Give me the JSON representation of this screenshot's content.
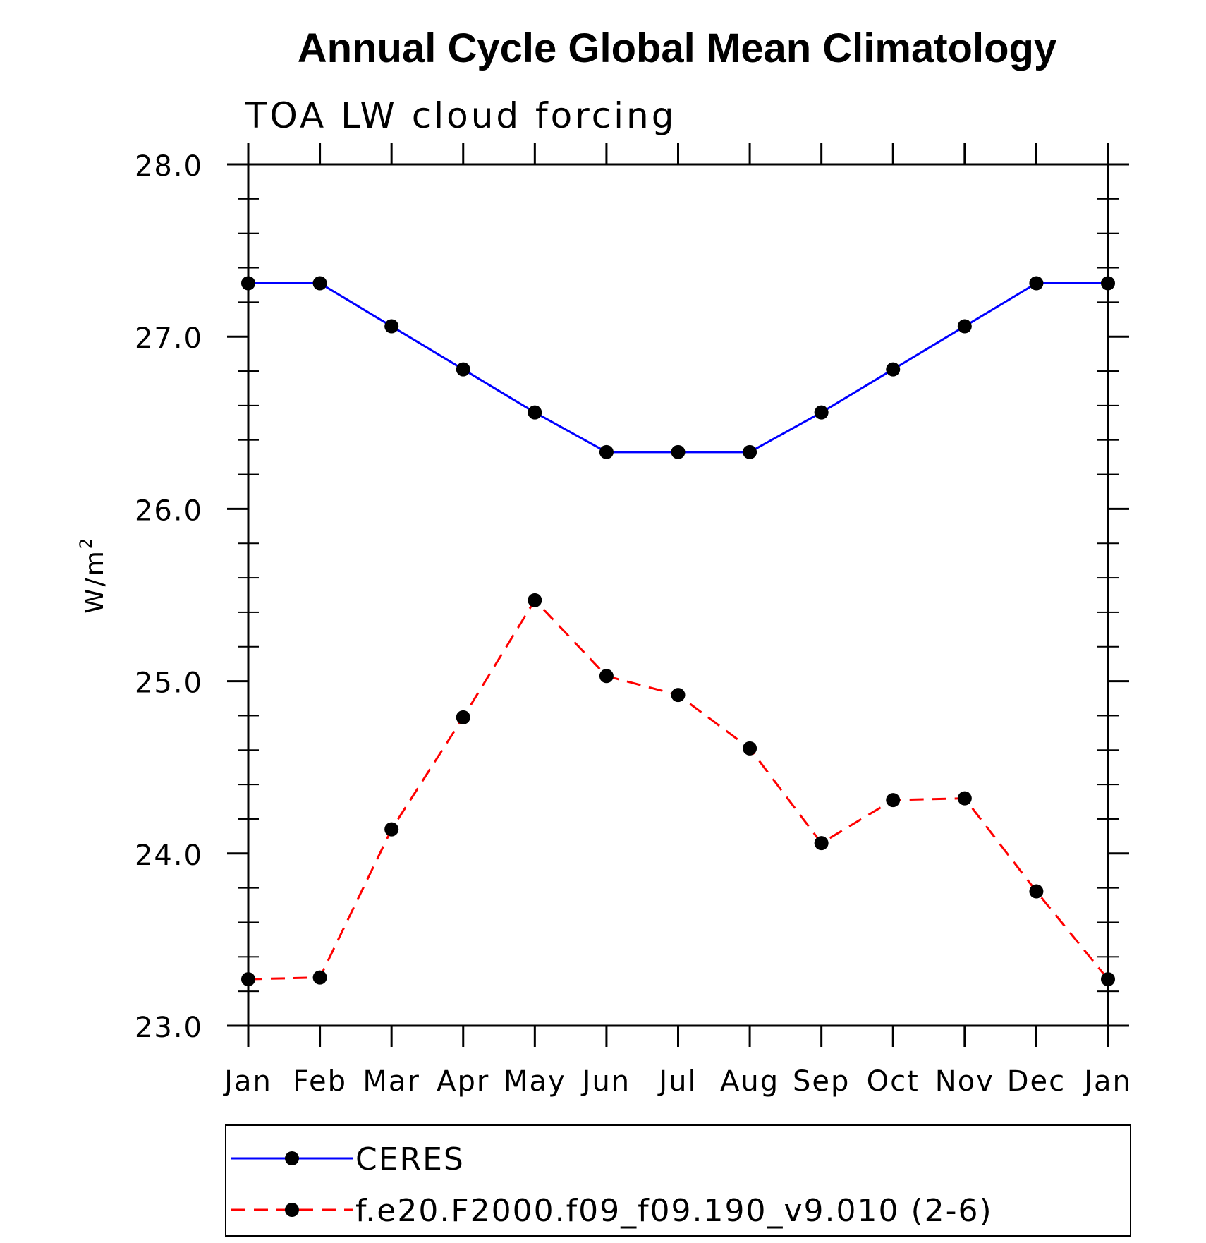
{
  "chart_data": {
    "type": "line",
    "title": "Annual Cycle Global Mean Climatology",
    "subtitle": "TOA LW cloud forcing",
    "xlabel": "",
    "ylabel": "W/m",
    "ylabel_superscript": "2",
    "categories": [
      "Jan",
      "Feb",
      "Mar",
      "Apr",
      "May",
      "Jun",
      "Jul",
      "Aug",
      "Sep",
      "Oct",
      "Nov",
      "Dec",
      "Jan"
    ],
    "ylim": [
      23.0,
      28.0
    ],
    "yticks": [
      "23.0",
      "24.0",
      "25.0",
      "26.0",
      "27.0",
      "28.0"
    ],
    "grid": false,
    "legend_position": "bottom",
    "series": [
      {
        "name": "CERES",
        "color": "#0000ff",
        "line_style": "solid",
        "marker": "filled-circle",
        "values": [
          27.31,
          27.31,
          27.06,
          26.81,
          26.56,
          26.33,
          26.33,
          26.33,
          26.56,
          26.81,
          27.06,
          27.31,
          27.31
        ]
      },
      {
        "name": "f.e20.F2000.f09_f09.190_v9.010 (2-6)",
        "color": "#ff0000",
        "line_style": "dashed",
        "marker": "filled-circle",
        "values": [
          23.27,
          23.28,
          24.14,
          24.79,
          25.47,
          25.03,
          24.92,
          24.61,
          24.06,
          24.31,
          24.32,
          23.78,
          23.27
        ]
      }
    ]
  }
}
